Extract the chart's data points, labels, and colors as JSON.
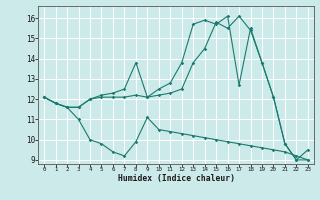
{
  "xlabel": "Humidex (Indice chaleur)",
  "bg_color": "#cceaea",
  "line_color": "#1a7a6e",
  "grid_color": "#ffffff",
  "xlim": [
    -0.5,
    23.5
  ],
  "ylim": [
    8.8,
    16.6
  ],
  "xticks": [
    0,
    1,
    2,
    3,
    4,
    5,
    6,
    7,
    8,
    9,
    10,
    11,
    12,
    13,
    14,
    15,
    16,
    17,
    18,
    19,
    20,
    21,
    22,
    23
  ],
  "yticks": [
    9,
    10,
    11,
    12,
    13,
    14,
    15,
    16
  ],
  "series1": [
    [
      0,
      12.1
    ],
    [
      1,
      11.8
    ],
    [
      2,
      11.6
    ],
    [
      3,
      11.6
    ],
    [
      4,
      12.0
    ],
    [
      5,
      12.1
    ],
    [
      6,
      12.1
    ],
    [
      7,
      12.1
    ],
    [
      8,
      12.2
    ],
    [
      9,
      12.1
    ],
    [
      10,
      12.2
    ],
    [
      11,
      12.3
    ],
    [
      12,
      12.5
    ],
    [
      13,
      13.8
    ],
    [
      14,
      14.5
    ],
    [
      15,
      15.8
    ],
    [
      16,
      15.5
    ],
    [
      17,
      16.1
    ],
    [
      18,
      15.4
    ],
    [
      19,
      13.8
    ],
    [
      20,
      12.1
    ],
    [
      21,
      9.8
    ],
    [
      22,
      9.0
    ],
    [
      23,
      9.5
    ]
  ],
  "series2": [
    [
      0,
      12.1
    ],
    [
      1,
      11.8
    ],
    [
      2,
      11.6
    ],
    [
      3,
      11.0
    ],
    [
      4,
      10.0
    ],
    [
      5,
      9.8
    ],
    [
      6,
      9.4
    ],
    [
      7,
      9.2
    ],
    [
      8,
      9.9
    ],
    [
      9,
      11.1
    ],
    [
      10,
      10.5
    ],
    [
      11,
      10.4
    ],
    [
      12,
      10.3
    ],
    [
      13,
      10.2
    ],
    [
      14,
      10.1
    ],
    [
      15,
      10.0
    ],
    [
      16,
      9.9
    ],
    [
      17,
      9.8
    ],
    [
      18,
      9.7
    ],
    [
      19,
      9.6
    ],
    [
      20,
      9.5
    ],
    [
      21,
      9.4
    ],
    [
      22,
      9.2
    ],
    [
      23,
      9.0
    ]
  ],
  "series3": [
    [
      0,
      12.1
    ],
    [
      1,
      11.8
    ],
    [
      2,
      11.6
    ],
    [
      3,
      11.6
    ],
    [
      4,
      12.0
    ],
    [
      5,
      12.2
    ],
    [
      6,
      12.3
    ],
    [
      7,
      12.5
    ],
    [
      8,
      13.8
    ],
    [
      9,
      12.1
    ],
    [
      10,
      12.5
    ],
    [
      11,
      12.8
    ],
    [
      12,
      13.8
    ],
    [
      13,
      15.7
    ],
    [
      14,
      15.9
    ],
    [
      15,
      15.7
    ],
    [
      16,
      16.1
    ],
    [
      17,
      12.7
    ],
    [
      18,
      15.5
    ],
    [
      19,
      13.8
    ],
    [
      20,
      12.1
    ],
    [
      21,
      9.8
    ],
    [
      22,
      9.0
    ],
    [
      23,
      9.0
    ]
  ]
}
